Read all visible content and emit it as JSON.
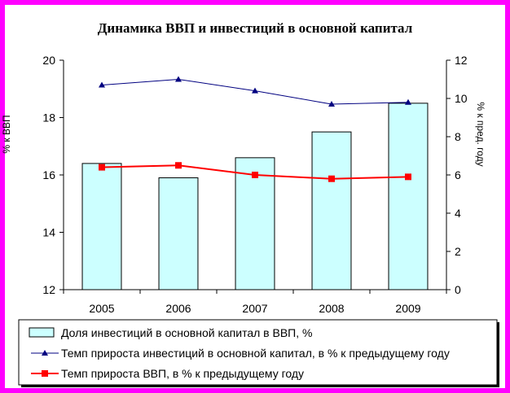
{
  "chart_data": {
    "type": "bar",
    "title": "Динамика ВВП и инвестиций в основной капитал",
    "categories": [
      "2005",
      "2006",
      "2007",
      "2008",
      "2009"
    ],
    "left_axis": {
      "label": "% к ВВП",
      "ylim": [
        12,
        20
      ],
      "ticks": [
        12,
        14,
        16,
        18,
        20
      ]
    },
    "right_axis": {
      "label": "% к пред. году",
      "ylim": [
        0,
        12
      ],
      "ticks": [
        0,
        2,
        4,
        6,
        8,
        10,
        12
      ]
    },
    "series": [
      {
        "name": "Доля инвестиций в основной капитал в ВВП, %",
        "type": "bar",
        "axis": "left",
        "values": [
          16.4,
          15.9,
          16.6,
          17.5,
          18.5
        ],
        "color": "#ccffff",
        "stroke": "#000000"
      },
      {
        "name": "Темп прироста инвестиций в основной капитал, в % к предыдущему году",
        "type": "line",
        "axis": "right",
        "values": [
          10.7,
          11.0,
          10.4,
          9.7,
          9.8
        ],
        "color": "#000080",
        "marker": "triangle"
      },
      {
        "name": "Темп прироста ВВП, в % к предыдущему году",
        "type": "line",
        "axis": "right",
        "values": [
          6.4,
          6.5,
          6.0,
          5.8,
          5.9
        ],
        "color": "#ff0000",
        "marker": "square"
      }
    ],
    "grid": false,
    "legend_position": "bottom",
    "colors": {
      "frame": "#ff00ff",
      "background": "#ffffff"
    }
  }
}
